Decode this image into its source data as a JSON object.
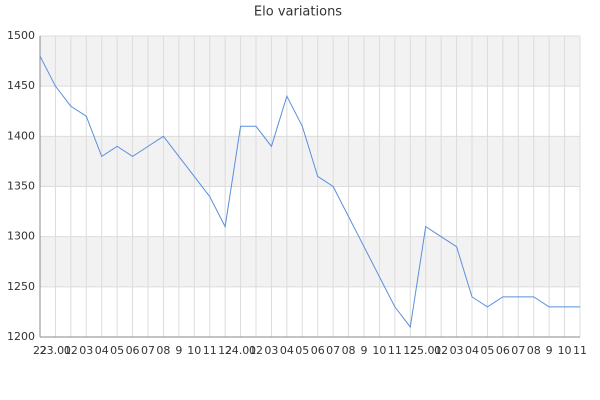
{
  "chart_data": {
    "type": "line",
    "title": "Elo variations",
    "categories": [
      "22",
      "23.01",
      "02",
      "03",
      "04",
      "05",
      "06",
      "07",
      "08",
      "9",
      "10",
      "11",
      "12",
      "24.01",
      "02",
      "03",
      "04",
      "05",
      "06",
      "07",
      "08",
      "9",
      "10",
      "11",
      "12",
      "25.01",
      "02",
      "03",
      "04",
      "05",
      "06",
      "07",
      "08",
      "9",
      "10",
      "11"
    ],
    "series": [
      {
        "color": "#5b8fdc",
        "values": [
          1480,
          1450,
          1430,
          1420,
          1380,
          1390,
          1380,
          1390,
          1400,
          1380,
          1360,
          1340,
          1310,
          1410,
          1410,
          1390,
          1440,
          1410,
          1360,
          1350,
          1320,
          1290,
          1260,
          1230,
          1210,
          1310,
          1300,
          1290,
          1240,
          1230,
          1240,
          1240,
          1240,
          1230,
          1230,
          1230
        ]
      }
    ],
    "ylim": [
      1200,
      1500
    ],
    "yticks": [
      1200,
      1250,
      1300,
      1350,
      1400,
      1450,
      1500
    ],
    "grid": true
  }
}
